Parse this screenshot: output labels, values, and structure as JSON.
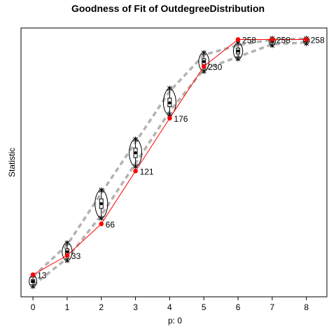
{
  "chart_data": {
    "type": "line",
    "title": "Goodness of Fit of OutdegreeDistribution",
    "xlabel": "p: 0",
    "ylabel": "Statistic",
    "x": [
      0,
      1,
      2,
      3,
      4,
      5,
      6,
      7,
      8
    ],
    "xlim": [
      -0.35,
      8.6
    ],
    "ylim": [
      -10,
      270
    ],
    "grid": false,
    "observed": {
      "values": [
        13,
        33,
        66,
        121,
        176,
        230,
        258,
        258,
        258
      ],
      "labels": [
        "13",
        "33",
        "66",
        "121",
        "176",
        "230",
        "258",
        "258",
        "258"
      ],
      "color": "#ff0000"
    },
    "simulated": {
      "median": [
        6,
        37,
        87,
        140,
        192,
        235,
        246,
        256,
        257
      ],
      "q1": [
        5,
        34,
        82,
        135,
        188,
        232,
        243,
        255,
        256
      ],
      "q3": [
        8,
        40,
        92,
        145,
        197,
        238,
        249,
        257,
        258
      ],
      "min": [
        1,
        28,
        72,
        126,
        180,
        225,
        238,
        252,
        254
      ],
      "max": [
        12,
        46,
        101,
        154,
        207,
        244,
        254,
        259,
        259
      ],
      "band_low": [
        2,
        30,
        75,
        129,
        183,
        227,
        240,
        253,
        255
      ],
      "band_high": [
        11,
        44,
        98,
        151,
        204,
        242,
        252,
        258,
        259
      ],
      "band_color": "#b3b3b3",
      "violin_color": "#000000"
    }
  }
}
